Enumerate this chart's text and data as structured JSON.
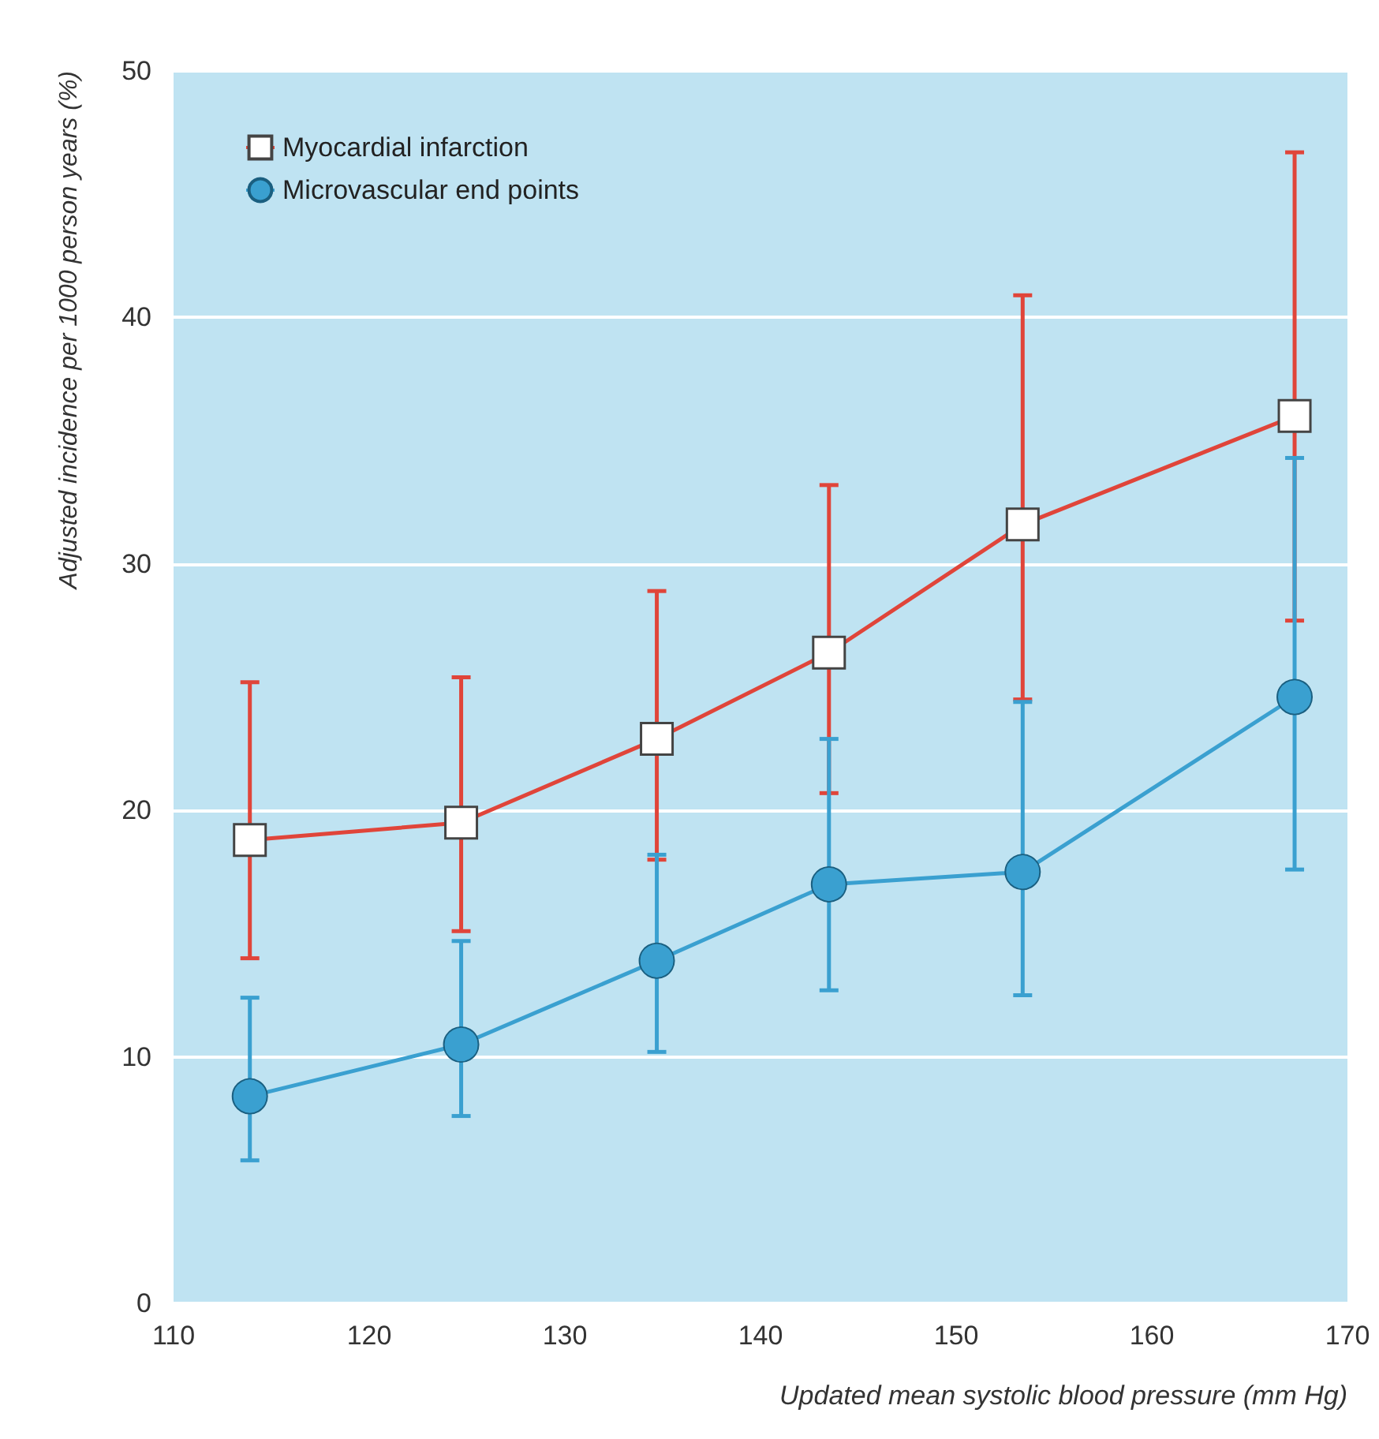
{
  "chart_data": {
    "type": "line",
    "xlabel": "Updated mean systolic blood pressure (mm Hg)",
    "ylabel": "Adjusted incidence per 1000 person years (%)",
    "x": [
      113.9,
      124.7,
      134.7,
      143.5,
      153.4,
      167.3
    ],
    "series": [
      {
        "name": "Myocardial infarction",
        "color": "#e0453a",
        "marker": "square",
        "values": [
          18.8,
          19.5,
          22.9,
          26.4,
          31.6,
          36.0
        ],
        "errors": [
          [
            14.0,
            25.2
          ],
          [
            15.1,
            25.4
          ],
          [
            18.0,
            28.9
          ],
          [
            20.7,
            33.2
          ],
          [
            24.5,
            40.9
          ],
          [
            27.7,
            46.7
          ]
        ]
      },
      {
        "name": "Microvascular end points",
        "color": "#3aa0d0",
        "marker": "circle",
        "values": [
          8.4,
          10.5,
          13.9,
          17.0,
          17.5,
          24.6
        ],
        "errors": [
          [
            5.8,
            12.4
          ],
          [
            7.6,
            14.7
          ],
          [
            10.2,
            18.2
          ],
          [
            12.7,
            22.9
          ],
          [
            12.5,
            24.4
          ],
          [
            17.6,
            34.3
          ]
        ]
      }
    ],
    "xlim": [
      110,
      170
    ],
    "xticks": [
      110,
      120,
      130,
      140,
      150,
      160,
      170
    ],
    "ylim": [
      0,
      50
    ],
    "yticks": [
      0,
      10,
      20,
      30,
      40,
      50
    ],
    "grid": "y",
    "legend": "top left",
    "line_style": "solid"
  }
}
